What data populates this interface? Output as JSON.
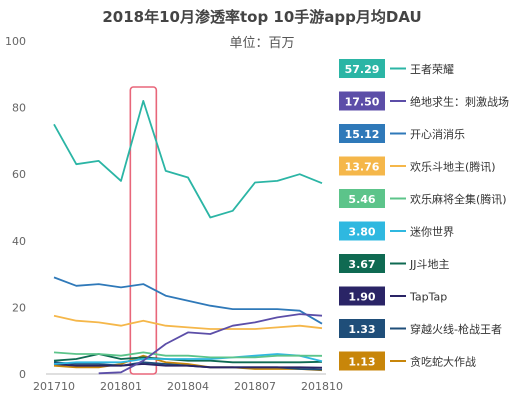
{
  "chart_data": {
    "type": "line",
    "title": "2018年10月渗透率top 10手游app月均DAU",
    "subtitle": "单位：百万",
    "x": [
      "201710",
      "201711",
      "201712",
      "201801",
      "201802",
      "201803",
      "201804",
      "201805",
      "201806",
      "201807",
      "201808",
      "201809",
      "201810"
    ],
    "x_tick_labels": [
      "201710",
      "201801",
      "201804",
      "201807",
      "201810"
    ],
    "ylim": [
      0,
      100
    ],
    "y_ticks": [
      0,
      20,
      40,
      60,
      80,
      100
    ],
    "grid": false,
    "legend_position": "right",
    "highlight_category": "201802",
    "series": [
      {
        "name": "王者荣耀",
        "badge": "57.29",
        "color": "#2bb5a5",
        "values": [
          75.0,
          63.0,
          64.0,
          58.0,
          82.0,
          61.0,
          59.0,
          47.0,
          49.0,
          57.5,
          58.0,
          60.0,
          57.29
        ]
      },
      {
        "name": "绝地求生：刺激战场",
        "badge": "17.50",
        "color": "#5c4ea8",
        "values": [
          null,
          null,
          0.2,
          0.5,
          4.0,
          9.0,
          12.5,
          12.0,
          14.5,
          15.5,
          17.0,
          18.0,
          17.5
        ]
      },
      {
        "name": "开心消消乐",
        "badge": "15.12",
        "color": "#2f79b9",
        "values": [
          29.0,
          26.5,
          27.0,
          26.0,
          27.0,
          23.5,
          22.0,
          20.5,
          19.5,
          19.5,
          19.5,
          19.0,
          15.12
        ]
      },
      {
        "name": "欢乐斗地主(腾讯)",
        "badge": "13.76",
        "color": "#f5b74a",
        "values": [
          17.5,
          16.0,
          15.5,
          14.5,
          16.0,
          14.5,
          14.0,
          13.5,
          13.5,
          13.5,
          14.0,
          14.5,
          13.76
        ]
      },
      {
        "name": "欢乐麻将全集(腾讯)",
        "badge": "5.46",
        "color": "#5cc48a",
        "values": [
          6.5,
          6.0,
          6.0,
          5.5,
          6.5,
          5.5,
          5.5,
          5.0,
          5.0,
          5.0,
          5.5,
          5.5,
          5.46
        ]
      },
      {
        "name": "迷你世界",
        "badge": "3.80",
        "color": "#2fb8e0",
        "values": [
          3.0,
          3.5,
          3.5,
          3.5,
          4.5,
          4.5,
          4.5,
          4.5,
          5.0,
          5.5,
          6.0,
          5.5,
          3.8
        ]
      },
      {
        "name": "JJ斗地主",
        "badge": "3.67",
        "color": "#0f6a52",
        "values": [
          4.0,
          4.5,
          6.0,
          4.5,
          5.0,
          4.5,
          4.0,
          4.0,
          3.5,
          3.5,
          3.5,
          3.5,
          3.67
        ]
      },
      {
        "name": "TapTap",
        "badge": "1.90",
        "color": "#2a2466",
        "values": [
          3.0,
          2.5,
          2.5,
          2.5,
          3.0,
          2.5,
          2.5,
          2.0,
          2.0,
          2.0,
          2.0,
          2.0,
          1.9
        ]
      },
      {
        "name": "穿越火线-枪战王者",
        "badge": "1.33",
        "color": "#1f4e79",
        "values": [
          3.5,
          3.0,
          3.0,
          2.5,
          3.5,
          3.0,
          2.5,
          2.0,
          2.0,
          2.0,
          2.0,
          1.5,
          1.33
        ]
      },
      {
        "name": "贪吃蛇大作战",
        "badge": "1.13",
        "color": "#c8860a",
        "values": [
          2.5,
          2.0,
          2.0,
          3.0,
          5.5,
          3.5,
          3.0,
          2.0,
          2.0,
          1.5,
          1.5,
          1.5,
          1.13
        ]
      }
    ]
  }
}
